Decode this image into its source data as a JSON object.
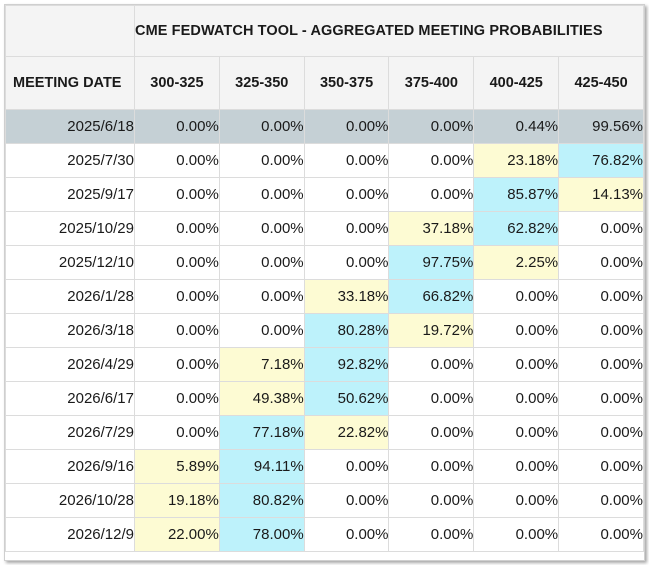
{
  "title": "CME FEDWATCH TOOL - AGGREGATED MEETING PROBABILITIES",
  "date_header": "MEETING DATE",
  "ranges": [
    "300-325",
    "325-350",
    "350-375",
    "375-400",
    "400-425",
    "425-450"
  ],
  "colors": {
    "highest": "#bdf2fb",
    "second": "#fdfbd3",
    "current_row": "#c5d0d5"
  },
  "rows": [
    {
      "date": "2025/6/18",
      "values": [
        "0.00%",
        "0.00%",
        "0.00%",
        "0.00%",
        "0.44%",
        "99.56%"
      ],
      "hl": [
        "",
        "",
        "",
        "",
        "",
        ""
      ]
    },
    {
      "date": "2025/7/30",
      "values": [
        "0.00%",
        "0.00%",
        "0.00%",
        "0.00%",
        "23.18%",
        "76.82%"
      ],
      "hl": [
        "",
        "",
        "",
        "",
        "yel",
        "cyan"
      ]
    },
    {
      "date": "2025/9/17",
      "values": [
        "0.00%",
        "0.00%",
        "0.00%",
        "0.00%",
        "85.87%",
        "14.13%"
      ],
      "hl": [
        "",
        "",
        "",
        "",
        "cyan",
        "yel"
      ]
    },
    {
      "date": "2025/10/29",
      "values": [
        "0.00%",
        "0.00%",
        "0.00%",
        "37.18%",
        "62.82%",
        "0.00%"
      ],
      "hl": [
        "",
        "",
        "",
        "yel",
        "cyan",
        ""
      ]
    },
    {
      "date": "2025/12/10",
      "values": [
        "0.00%",
        "0.00%",
        "0.00%",
        "97.75%",
        "2.25%",
        "0.00%"
      ],
      "hl": [
        "",
        "",
        "",
        "cyan",
        "yel",
        ""
      ]
    },
    {
      "date": "2026/1/28",
      "values": [
        "0.00%",
        "0.00%",
        "33.18%",
        "66.82%",
        "0.00%",
        "0.00%"
      ],
      "hl": [
        "",
        "",
        "yel",
        "cyan",
        "",
        ""
      ]
    },
    {
      "date": "2026/3/18",
      "values": [
        "0.00%",
        "0.00%",
        "80.28%",
        "19.72%",
        "0.00%",
        "0.00%"
      ],
      "hl": [
        "",
        "",
        "cyan",
        "yel",
        "",
        ""
      ]
    },
    {
      "date": "2026/4/29",
      "values": [
        "0.00%",
        "7.18%",
        "92.82%",
        "0.00%",
        "0.00%",
        "0.00%"
      ],
      "hl": [
        "",
        "yel",
        "cyan",
        "",
        "",
        ""
      ]
    },
    {
      "date": "2026/6/17",
      "values": [
        "0.00%",
        "49.38%",
        "50.62%",
        "0.00%",
        "0.00%",
        "0.00%"
      ],
      "hl": [
        "",
        "yel",
        "cyan",
        "",
        "",
        ""
      ]
    },
    {
      "date": "2026/7/29",
      "values": [
        "0.00%",
        "77.18%",
        "22.82%",
        "0.00%",
        "0.00%",
        "0.00%"
      ],
      "hl": [
        "",
        "cyan",
        "yel",
        "",
        "",
        ""
      ]
    },
    {
      "date": "2026/9/16",
      "values": [
        "5.89%",
        "94.11%",
        "0.00%",
        "0.00%",
        "0.00%",
        "0.00%"
      ],
      "hl": [
        "yel",
        "cyan",
        "",
        "",
        "",
        ""
      ]
    },
    {
      "date": "2026/10/28",
      "values": [
        "19.18%",
        "80.82%",
        "0.00%",
        "0.00%",
        "0.00%",
        "0.00%"
      ],
      "hl": [
        "yel",
        "cyan",
        "",
        "",
        "",
        ""
      ]
    },
    {
      "date": "2026/12/9",
      "values": [
        "22.00%",
        "78.00%",
        "0.00%",
        "0.00%",
        "0.00%",
        "0.00%"
      ],
      "hl": [
        "yel",
        "cyan",
        "",
        "",
        "",
        ""
      ]
    }
  ]
}
